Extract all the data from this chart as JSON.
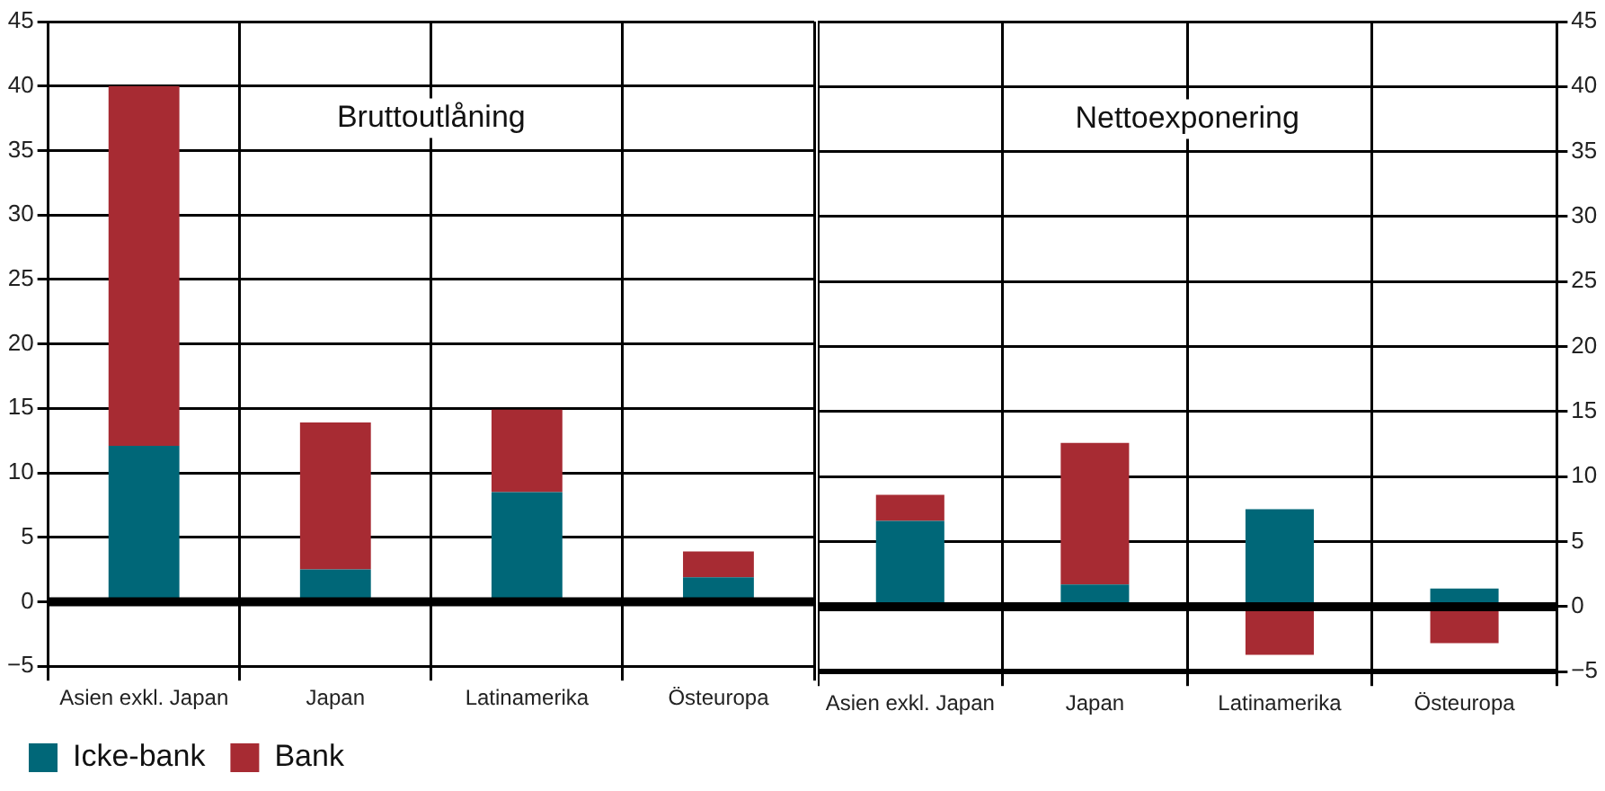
{
  "chart_data": [
    {
      "type": "bar",
      "stacked": true,
      "categories": [
        "Asien exkl. Japan",
        "Japan",
        "Latinamerika",
        "Östeuropa"
      ],
      "series": [
        {
          "name": "Icke-bank",
          "color": "#006778",
          "values": [
            12.1,
            2.5,
            8.5,
            1.9
          ]
        },
        {
          "name": "Bank",
          "color": "#a72b33",
          "values": [
            27.9,
            11.4,
            6.4,
            2.0
          ]
        }
      ],
      "ylim": [
        -5,
        45
      ],
      "yticks": [
        -5,
        0,
        5,
        10,
        15,
        20,
        25,
        30,
        35,
        40,
        45
      ],
      "grid": true,
      "legend": "bottom",
      "ref_lines": [
        {
          "axis": "y",
          "value": 0
        }
      ],
      "annotations": [
        "Bruttoutlåning"
      ]
    },
    {
      "type": "bar",
      "stacked": true,
      "categories": [
        "Asien exkl. Japan",
        "Japan",
        "Latinamerika",
        "Östeuropa"
      ],
      "series": [
        {
          "color": "#006778",
          "axis": "y2",
          "values": [
            6.6,
            1.7,
            7.5,
            1.4
          ]
        },
        {
          "color": "#a72b33",
          "axis": "y2",
          "values": [
            2.0,
            10.9,
            -3.7,
            -2.8
          ]
        }
      ],
      "y2lim": [
        -5,
        45
      ],
      "y2ticks": [
        -5,
        0,
        5,
        10,
        15,
        20,
        25,
        30,
        35,
        40,
        45
      ],
      "grid": true,
      "ref_lines": [
        {
          "axis": "y2",
          "value": 0
        }
      ],
      "annotations": [
        "Nettoexponering"
      ]
    }
  ]
}
